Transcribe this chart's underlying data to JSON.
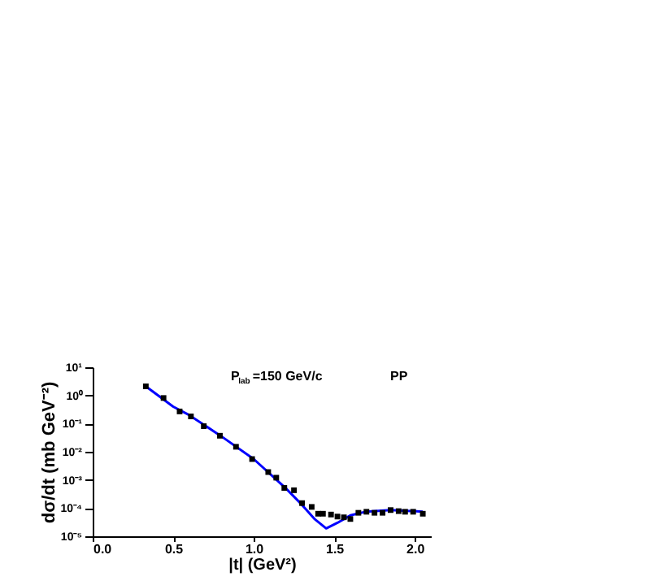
{
  "chart_data": {
    "type": "scatter",
    "xlabel": "|t| (GeV²)",
    "ylabel": "dσ/dt (mb GeV⁻²)",
    "annotations": [
      "P$_{lab}$=150 GeV/c",
      "PP"
    ],
    "log": "y",
    "grid": false,
    "xlim": [
      0.0,
      2.1
    ],
    "xticks": [
      {
        "value": 0,
        "label": "0.0"
      },
      0.5,
      {
        "value": 1,
        "label": "1.0"
      },
      1.5,
      {
        "value": 2,
        "label": "2.0"
      }
    ],
    "ylim": [
      1e-05,
      10
    ],
    "yticks": [
      {
        "value": 10,
        "label": "10¹"
      },
      {
        "value": 1,
        "label": "10⁰"
      },
      {
        "value": 0.1,
        "label": "10⁻¹"
      },
      {
        "value": 0.01,
        "label": "10⁻²"
      },
      {
        "value": 0.001,
        "label": "10⁻³"
      },
      {
        "value": 0.0001,
        "label": "10⁻⁴"
      },
      {
        "value": 1e-05,
        "label": "10⁻⁵"
      }
    ],
    "series": [
      {
        "marker": "square",
        "color": "#000000",
        "x": [
          0.33,
          0.44,
          0.54,
          0.61,
          0.69,
          0.79,
          0.89,
          0.99,
          1.09,
          1.14,
          1.19,
          1.25,
          1.3,
          1.36,
          1.4,
          1.43,
          1.48,
          1.52,
          1.56,
          1.6,
          1.65,
          1.7,
          1.75,
          1.8,
          1.85,
          1.9,
          1.94,
          1.99,
          2.05
        ],
        "values": [
          2.1,
          0.81,
          0.27,
          0.18,
          0.081,
          0.037,
          0.015,
          0.0055,
          0.0019,
          0.0012,
          0.00052,
          0.00043,
          0.00015,
          0.00011,
          6.3e-05,
          6.3e-05,
          5.9e-05,
          5e-05,
          4.7e-05,
          4.1e-05,
          6.8e-05,
          7.4e-05,
          6.8e-05,
          6.8e-05,
          8.5e-05,
          7.8e-05,
          7.4e-05,
          7.4e-05,
          6.3e-05
        ]
      },
      {
        "type": "line",
        "color": "#0000ff",
        "line_style": "solid",
        "x": [
          0.33,
          0.5,
          0.6,
          0.8,
          1.0,
          1.2,
          1.3,
          1.38,
          1.45,
          1.52,
          1.6,
          1.7,
          1.85,
          2.05
        ],
        "values": [
          2.1,
          0.4,
          0.2,
          0.035,
          0.0055,
          0.0005,
          0.00013,
          4e-05,
          1.9e-05,
          3e-05,
          5.5e-05,
          7.5e-05,
          8.5e-05,
          7.5e-05
        ]
      }
    ]
  }
}
